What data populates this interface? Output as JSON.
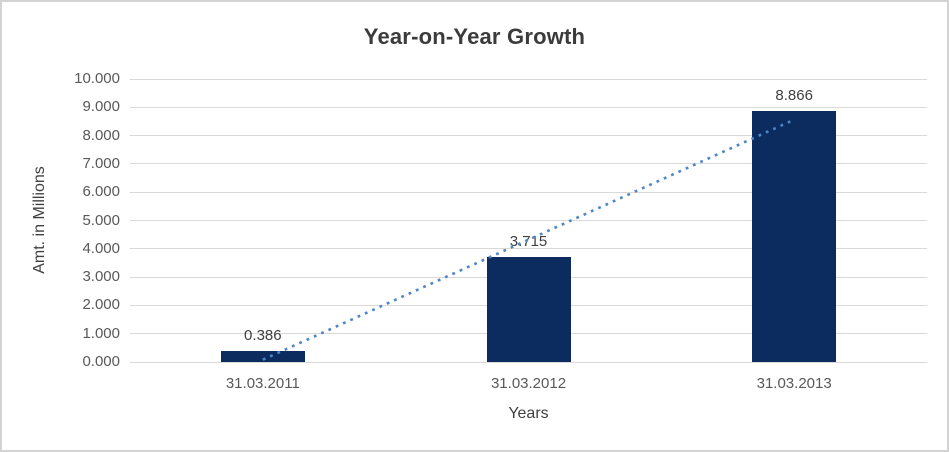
{
  "chart_data": {
    "type": "bar",
    "title": "Year-on-Year Growth",
    "xlabel": "Years",
    "ylabel": "Amt. in Millions",
    "categories": [
      "31.03.2011",
      "31.03.2012",
      "31.03.2013"
    ],
    "values": [
      0.386,
      3.715,
      8.866
    ],
    "data_labels": [
      "0.386",
      "3.715",
      "8.866"
    ],
    "ylim": [
      0,
      10
    ],
    "ytick_values": [
      0,
      1,
      2,
      3,
      4,
      5,
      6,
      7,
      8,
      9,
      10
    ],
    "ytick_labels": [
      "0.000",
      "1.000",
      "2.000",
      "3.000",
      "4.000",
      "5.000",
      "6.000",
      "7.000",
      "8.000",
      "9.000",
      "10.000"
    ],
    "grid": true,
    "legend_position": "none",
    "bar_color": "#0c2b5f",
    "gridline_color": "#d9d9d9",
    "trendline": {
      "type": "linear",
      "style": "dotted",
      "color": "#4e86c6",
      "start_value": 0.082,
      "end_value": 8.562
    }
  }
}
